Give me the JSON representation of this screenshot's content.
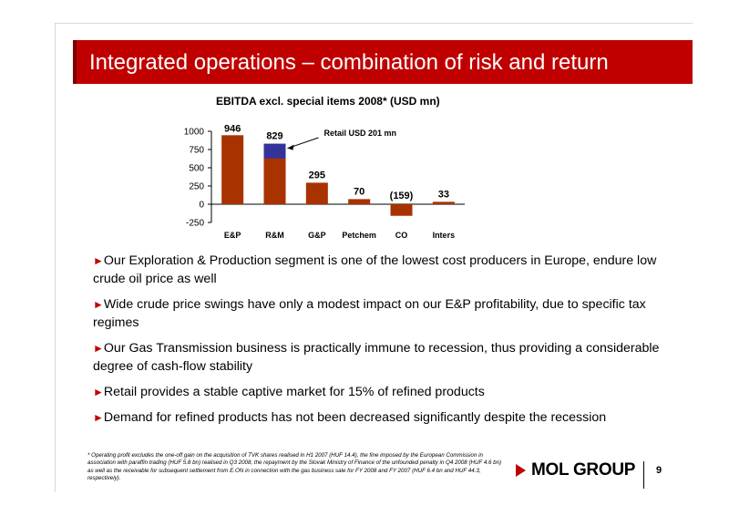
{
  "slide": {
    "title": "Integrated operations – combination of risk and return",
    "page_number": "9",
    "logo_text": "MOL GROUP"
  },
  "colors": {
    "brand_red": "#c00000",
    "bar_brown": "#a83200",
    "bar_blue": "#33339a"
  },
  "chart_data": {
    "type": "bar",
    "title": "EBITDA excl. special items 2008* (USD mn)",
    "categories": [
      "E&P",
      "R&M",
      "G&P",
      "Petchem",
      "CO",
      "Inters"
    ],
    "values": [
      946,
      829,
      295,
      70,
      -159,
      33
    ],
    "data_labels": [
      "946",
      "829",
      "295",
      "70",
      "(159)",
      "33"
    ],
    "stacked_part": {
      "category": "R&M",
      "value": 201,
      "label": "Retail USD 201 mn"
    },
    "yticks": [
      "1000",
      "750",
      "500",
      "250",
      "0",
      "-250"
    ],
    "ylim": [
      -250,
      1000
    ]
  },
  "bullets": [
    "Our Exploration & Production segment is one of the lowest cost producers in Europe, endure low crude oil price as well",
    "Wide crude price swings have only a modest impact on our E&P profitability, due to specific tax regimes",
    "Our Gas Transmission business is practically immune to recession, thus providing a considerable degree of cash-flow stability",
    "Retail provides a stable captive market for 15% of refined products",
    "Demand for refined products has not been decreased significantly despite the recession"
  ],
  "bullet_marker": "►",
  "footnote": "*  Operating profit excludes the one-off gain on the acquisition of TVK shares realised in H1 2007 (HUF 14.4), the fine imposed by the European Commission in association with paraffin trading (HUF 5.8 bn) realised in Q3 2008, the repayment by the Slovak Ministry of Finance of the unfounded penalty in Q4 2008 (HUF 4.6 bn) as well as the receivable for subsequent settlement from E.ON in connection with the gas business sale for FY 2008 and FY 2007 (HUF 6.4 bn and HUF 44.3, respectively)."
}
